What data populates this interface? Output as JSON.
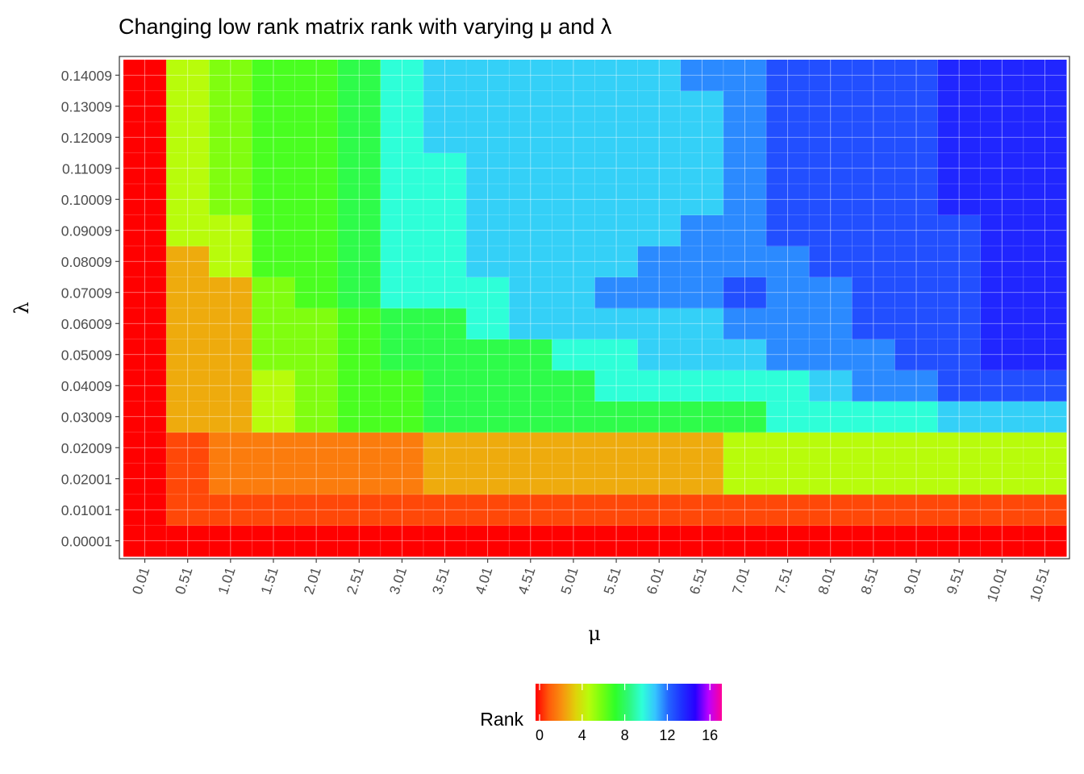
{
  "chart_data": {
    "type": "heatmap",
    "title": "Changing low rank matrix rank with varying μ and λ",
    "xlabel": "μ",
    "ylabel": "λ",
    "x": [
      "0.01",
      "0.51",
      "1.01",
      "1.51",
      "2.01",
      "2.51",
      "3.01",
      "3.51",
      "4.01",
      "4.51",
      "5.01",
      "5.51",
      "6.01",
      "6.51",
      "7.01",
      "7.51",
      "8.01",
      "8.51",
      "9.01",
      "9.51",
      "10.01",
      "10.51"
    ],
    "y": [
      "0.00001",
      "0.01001",
      "0.02001",
      "0.02009",
      "0.03009",
      "0.04009",
      "0.05009",
      "0.06009",
      "0.07009",
      "0.08009",
      "0.09009",
      "0.10009",
      "0.11009",
      "0.12009",
      "0.13009",
      "0.14009"
    ],
    "values": [
      [
        0,
        0,
        0,
        0,
        0,
        0,
        0,
        0,
        0,
        0,
        0,
        0,
        0,
        0,
        0,
        0,
        0,
        0,
        0,
        0,
        0,
        0
      ],
      [
        0,
        1,
        1,
        1,
        1,
        1,
        1,
        1,
        1,
        1,
        1,
        1,
        1,
        1,
        1,
        1,
        1,
        1,
        1,
        1,
        1,
        1
      ],
      [
        0,
        1,
        2,
        2,
        2,
        2,
        2,
        3,
        3,
        3,
        3,
        3,
        3,
        3,
        5,
        5,
        5,
        5,
        5,
        5,
        5,
        5
      ],
      [
        0,
        1,
        2,
        2,
        2,
        2,
        2,
        3,
        3,
        3,
        3,
        3,
        3,
        3,
        5,
        5,
        5,
        5,
        5,
        5,
        5,
        5
      ],
      [
        0,
        3,
        3,
        5,
        6,
        7,
        7,
        8,
        8,
        8,
        8,
        8,
        8,
        8,
        8,
        10,
        10,
        10,
        10,
        11,
        11,
        11
      ],
      [
        0,
        3,
        3,
        5,
        6,
        7,
        7,
        8,
        8,
        8,
        8,
        10,
        10,
        10,
        10,
        10,
        11,
        12,
        12,
        13,
        13,
        13
      ],
      [
        0,
        3,
        3,
        6,
        6,
        7,
        8,
        8,
        8,
        8,
        10,
        10,
        11,
        11,
        11,
        12,
        12,
        12,
        13,
        13,
        14,
        14
      ],
      [
        0,
        3,
        3,
        6,
        6,
        7,
        8,
        8,
        10,
        11,
        11,
        11,
        11,
        11,
        12,
        12,
        12,
        13,
        13,
        13,
        14,
        14
      ],
      [
        0,
        3,
        3,
        6,
        7,
        8,
        10,
        10,
        10,
        11,
        11,
        12,
        12,
        12,
        13,
        12,
        12,
        13,
        13,
        13,
        14,
        14
      ],
      [
        0,
        3,
        5,
        7,
        7,
        8,
        10,
        10,
        11,
        11,
        11,
        11,
        12,
        12,
        12,
        12,
        13,
        13,
        13,
        13,
        14,
        14
      ],
      [
        0,
        5,
        5,
        7,
        7,
        8,
        10,
        10,
        11,
        11,
        11,
        11,
        11,
        12,
        12,
        13,
        13,
        13,
        13,
        13,
        14,
        14
      ],
      [
        0,
        5,
        6,
        7,
        7,
        8,
        10,
        10,
        11,
        11,
        11,
        11,
        11,
        11,
        12,
        13,
        13,
        13,
        13,
        14,
        14,
        14
      ],
      [
        0,
        5,
        6,
        7,
        7,
        8,
        10,
        10,
        11,
        11,
        11,
        11,
        11,
        11,
        12,
        13,
        13,
        13,
        13,
        14,
        14,
        14
      ],
      [
        0,
        5,
        6,
        7,
        7,
        8,
        10,
        11,
        11,
        11,
        11,
        11,
        11,
        11,
        12,
        13,
        13,
        13,
        13,
        14,
        14,
        14
      ],
      [
        0,
        5,
        6,
        7,
        7,
        8,
        10,
        11,
        11,
        11,
        11,
        11,
        11,
        11,
        12,
        13,
        13,
        13,
        13,
        14,
        14,
        14
      ],
      [
        0,
        5,
        6,
        7,
        7,
        8,
        10,
        11,
        11,
        11,
        11,
        11,
        11,
        12,
        12,
        13,
        13,
        13,
        13,
        14,
        14,
        14
      ]
    ],
    "legend": {
      "title": "Rank",
      "position": "bottom",
      "ticks": [
        0,
        4,
        8,
        12,
        16
      ],
      "range": [
        0,
        17.5
      ]
    },
    "color_scale": [
      "#ff0000",
      "#ff5a0a",
      "#f8920f",
      "#e0d10a",
      "#b8fc0b",
      "#72ff10",
      "#2eff2a",
      "#2ef87a",
      "#2effd8",
      "#35c4ff",
      "#2464ff",
      "#1e2fff",
      "#2800ff",
      "#bb00ff",
      "#ff0099"
    ],
    "grid": true
  }
}
